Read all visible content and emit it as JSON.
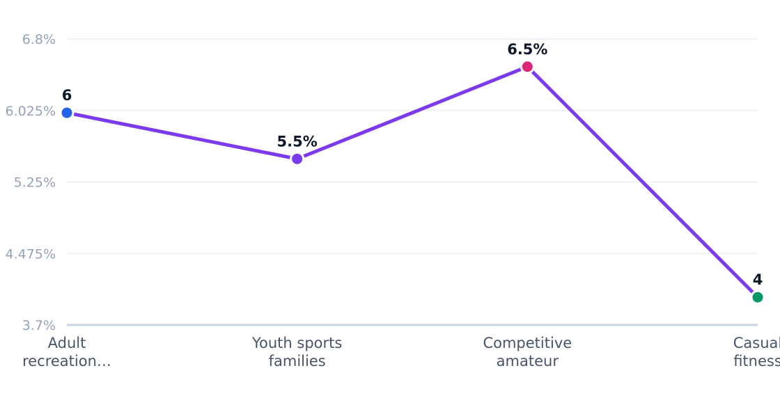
{
  "chart_data": {
    "type": "line",
    "categories": [
      [
        "Adult",
        "recreation…"
      ],
      [
        "Youth sports",
        "families"
      ],
      [
        "Competitive",
        "amateur"
      ],
      [
        "Casual",
        "fitness"
      ]
    ],
    "values": [
      6.0,
      5.5,
      6.5,
      4.0
    ],
    "data_labels": [
      "6",
      "5.5%",
      "6.5%",
      "4"
    ],
    "point_colors": [
      "#2563eb",
      "#7c3aed",
      "#db2777",
      "#059669"
    ],
    "line_color": "#7c3aed",
    "y_ticks": [
      "3.7%",
      "4.475%",
      "5.25%",
      "6.025%",
      "6.8%"
    ],
    "y_tick_values": [
      3.7,
      4.475,
      5.25,
      6.025,
      6.8
    ],
    "ylim": [
      3.7,
      6.8
    ],
    "grid": true,
    "legend": false,
    "title": "",
    "xlabel": "",
    "ylabel": ""
  }
}
